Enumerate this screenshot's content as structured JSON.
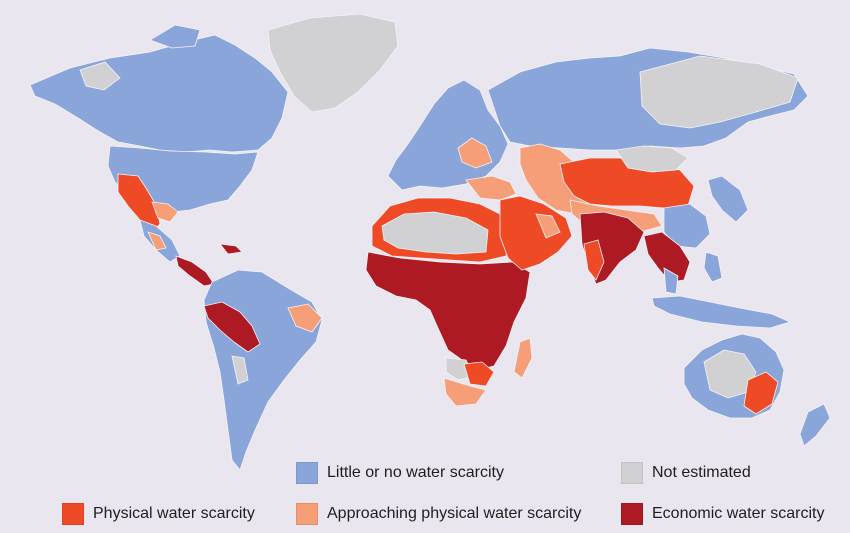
{
  "colors": {
    "ocean": "#e9e6ef",
    "little": "#8aa5d9",
    "not_estimated": "#d1d1d3",
    "physical": "#ef4a26",
    "approaching": "#f59e78",
    "economic": "#ad1a24"
  },
  "legend": {
    "little": "Little or no water scarcity",
    "not_estimated": "Not estimated",
    "physical": "Physical water scarcity",
    "approaching": "Approaching physical water scarcity",
    "economic": "Economic water scarcity"
  }
}
